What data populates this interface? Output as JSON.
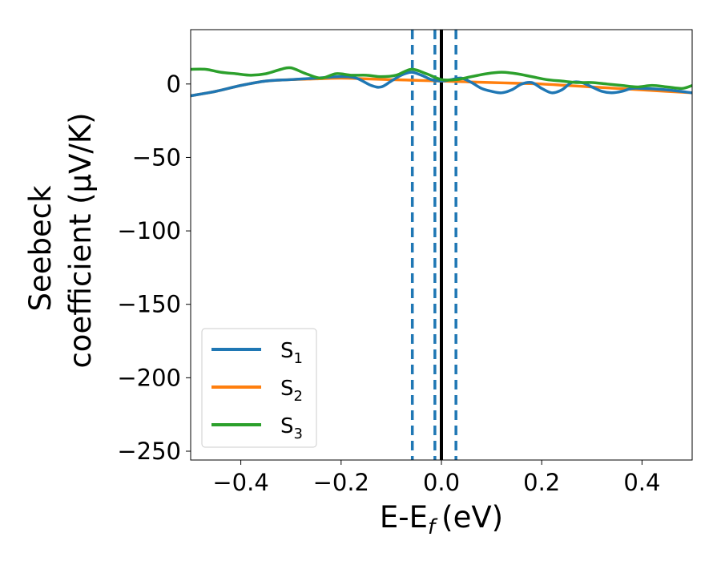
{
  "chart_data": {
    "type": "line",
    "xlabel": "E-E",
    "xlabel_sub": "f",
    "xlabel_unit": "(eV)",
    "ylabel_line1": "Seebeck",
    "ylabel_line2": "coefficient  (μV/K)",
    "xlim": [
      -0.5,
      0.5
    ],
    "ylim": [
      -256,
      37
    ],
    "x_ticks": [
      -0.4,
      -0.2,
      0.0,
      0.2,
      0.4
    ],
    "x_tick_labels": [
      "−0.4",
      "−0.2",
      "0.0",
      "0.2",
      "0.4"
    ],
    "y_ticks": [
      0,
      -50,
      -100,
      -150,
      -200,
      -250
    ],
    "y_tick_labels": [
      "0",
      "−50",
      "−100",
      "−150",
      "−200",
      "−250"
    ],
    "grid": false,
    "legend_position": "lower-left",
    "series": [
      {
        "name": "S",
        "sub": "1",
        "color": "#1f77b4",
        "x": [
          -0.5,
          -0.45,
          -0.4,
          -0.35,
          -0.3,
          -0.25,
          -0.2,
          -0.17,
          -0.14,
          -0.12,
          -0.1,
          -0.08,
          -0.06,
          -0.04,
          -0.02,
          0.0,
          0.02,
          0.04,
          0.06,
          0.08,
          0.1,
          0.12,
          0.14,
          0.16,
          0.18,
          0.2,
          0.22,
          0.24,
          0.26,
          0.28,
          0.3,
          0.32,
          0.34,
          0.36,
          0.38,
          0.4,
          0.45,
          0.5
        ],
        "y": [
          -8,
          -5,
          -1,
          2,
          3,
          4,
          5,
          4,
          -1,
          -2,
          2,
          6,
          8,
          6,
          3,
          2,
          3,
          4,
          1,
          -3,
          -5,
          -6,
          -4,
          0,
          1,
          -3,
          -6,
          -4,
          1,
          1,
          -2,
          -5,
          -6,
          -5,
          -3,
          -3,
          -4,
          -6
        ]
      },
      {
        "name": "S",
        "sub": "2",
        "color": "#ff7f0e",
        "x": [
          -0.5,
          -0.45,
          -0.4,
          -0.35,
          -0.3,
          -0.25,
          -0.2,
          -0.15,
          -0.1,
          -0.05,
          0.0,
          0.05,
          0.1,
          0.15,
          0.2,
          0.25,
          0.3,
          0.35,
          0.4,
          0.45,
          0.5
        ],
        "y": [
          -8,
          -5,
          -1,
          2,
          3,
          3.5,
          4,
          3.5,
          3,
          2.5,
          2,
          1.5,
          1,
          0.5,
          0,
          -1,
          -2,
          -3,
          -4,
          -5,
          -6
        ]
      },
      {
        "name": "S",
        "sub": "3",
        "color": "#2ca02c",
        "x": [
          -0.5,
          -0.47,
          -0.44,
          -0.41,
          -0.38,
          -0.35,
          -0.32,
          -0.3,
          -0.27,
          -0.24,
          -0.21,
          -0.18,
          -0.15,
          -0.12,
          -0.09,
          -0.06,
          -0.03,
          0.0,
          0.03,
          0.06,
          0.09,
          0.12,
          0.15,
          0.18,
          0.21,
          0.24,
          0.27,
          0.3,
          0.33,
          0.36,
          0.39,
          0.42,
          0.45,
          0.48,
          0.5
        ],
        "y": [
          10,
          10,
          8,
          7,
          6,
          7,
          10,
          11,
          7,
          4,
          7,
          6,
          6,
          5,
          6,
          10,
          7,
          3,
          3,
          5,
          7,
          8,
          7,
          5,
          3,
          2,
          1,
          1,
          0,
          -1,
          -2,
          -1,
          -2,
          -3,
          -1
        ]
      }
    ],
    "vertical_lines": [
      {
        "x": -0.058,
        "style": "dashed",
        "color": "#1f77b4"
      },
      {
        "x": -0.013,
        "style": "dashed",
        "color": "#1f77b4"
      },
      {
        "x": 0.029,
        "style": "dashed",
        "color": "#1f77b4"
      },
      {
        "x": 0.0,
        "style": "solid",
        "color": "#000000"
      }
    ]
  }
}
